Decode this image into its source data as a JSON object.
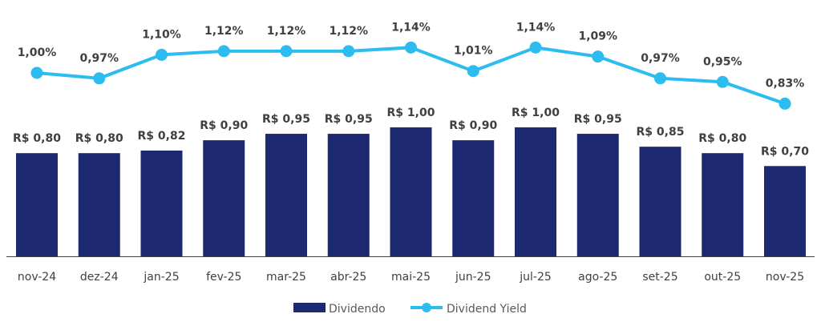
{
  "chart_data": {
    "type": "bar+line",
    "categories": [
      "nov-24",
      "dez-24",
      "jan-25",
      "fev-25",
      "mar-25",
      "abr-25",
      "mai-25",
      "jun-25",
      "jul-25",
      "ago-25",
      "set-25",
      "out-25",
      "nov-25"
    ],
    "series": [
      {
        "name": "Dividendo",
        "type": "bar",
        "values": [
          0.8,
          0.8,
          0.82,
          0.9,
          0.95,
          0.95,
          1.0,
          0.9,
          1.0,
          0.95,
          0.85,
          0.8,
          0.7
        ],
        "labels": [
          "R$ 0,80",
          "R$ 0,80",
          "R$ 0,82",
          "R$ 0,90",
          "R$ 0,95",
          "R$ 0,95",
          "R$ 1,00",
          "R$ 0,90",
          "R$ 1,00",
          "R$ 0,95",
          "R$ 0,85",
          "R$ 0,80",
          "R$ 0,70"
        ]
      },
      {
        "name": "Dividend Yield",
        "type": "line",
        "values": [
          1.0,
          0.97,
          1.1,
          1.12,
          1.12,
          1.12,
          1.14,
          1.01,
          1.14,
          1.09,
          0.97,
          0.95,
          0.83
        ],
        "labels": [
          "1,00%",
          "0,97%",
          "1,10%",
          "1,12%",
          "1,12%",
          "1,12%",
          "1,14%",
          "1,01%",
          "1,14%",
          "1,09%",
          "0,97%",
          "0,95%",
          "0,83%"
        ]
      }
    ],
    "legend_position": "bottom",
    "grid": false,
    "colors": {
      "bar": "#1c2870",
      "line": "#2cbcf0"
    }
  }
}
